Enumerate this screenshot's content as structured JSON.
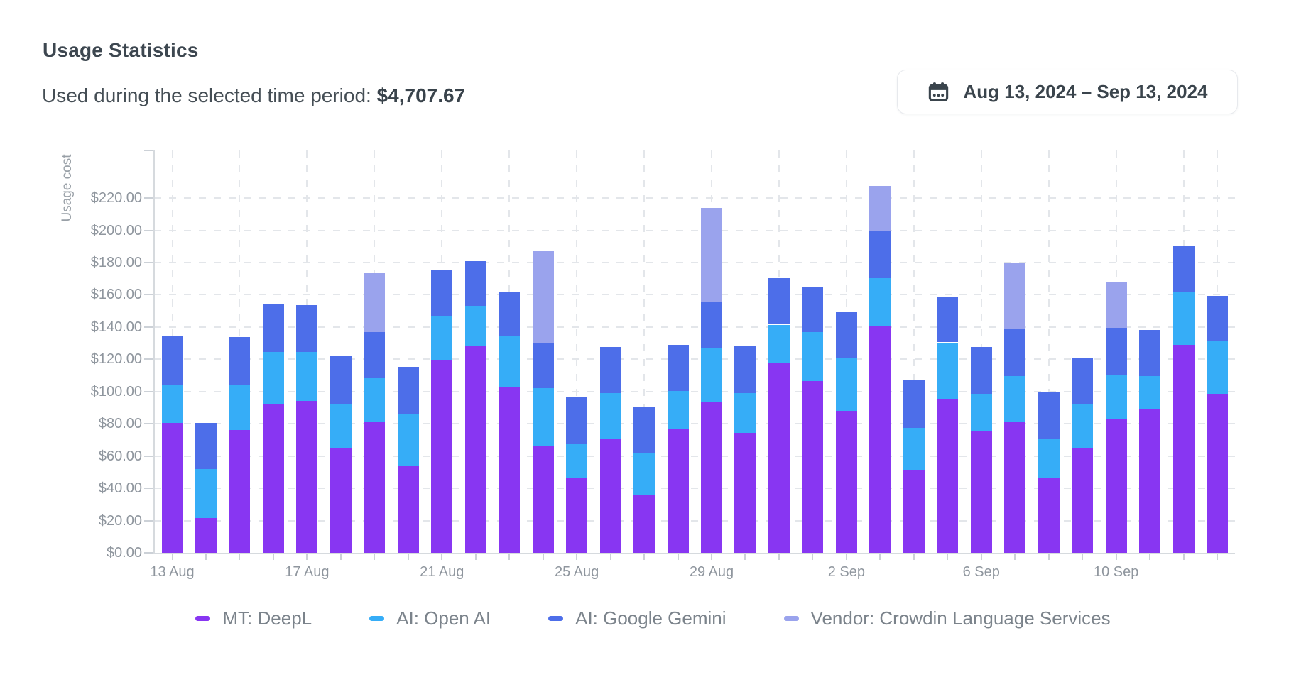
{
  "page": {
    "title": "Usage Statistics",
    "subtitle": {
      "label": "Used during the selected time period:",
      "value": "$4,707.67"
    },
    "date_picker": {
      "label": "Aug 13, 2024 – Sep 13, 2024",
      "icon": "calendar-icon"
    }
  },
  "colors": {
    "deepl": "#8836f2",
    "openai": "#36adf7",
    "gemini": "#4d6ee9",
    "vendor": "#9aa3ed",
    "axis_text": "#8f969e",
    "legend_text": "#7b838b",
    "grid_line": "#e3e6ea",
    "axis_line": "#d6dade",
    "title_text": "#3d4750"
  },
  "chart_data": {
    "type": "bar",
    "stacked": true,
    "title": "Usage Statistics",
    "xlabel": "",
    "ylabel": "Usage cost",
    "ylim": [
      0,
      250
    ],
    "ytick_step": 20,
    "ytick_format": "$%.2f",
    "grid": "dashed",
    "legend_position": "bottom",
    "categories": [
      "13 Aug",
      "14 Aug",
      "15 Aug",
      "16 Aug",
      "17 Aug",
      "18 Aug",
      "19 Aug",
      "20 Aug",
      "21 Aug",
      "22 Aug",
      "23 Aug",
      "24 Aug",
      "25 Aug",
      "26 Aug",
      "27 Aug",
      "28 Aug",
      "29 Aug",
      "30 Aug",
      "31 Aug",
      "1 Sep",
      "2 Sep",
      "3 Sep",
      "4 Sep",
      "5 Sep",
      "6 Sep",
      "7 Sep",
      "8 Sep",
      "9 Sep",
      "10 Sep",
      "11 Sep",
      "12 Sep",
      "13 Sep"
    ],
    "xtick_labels_shown": [
      "13 Aug",
      "17 Aug",
      "21 Aug",
      "25 Aug",
      "29 Aug",
      "2 Sep",
      "6 Sep",
      "10 Sep"
    ],
    "series": [
      {
        "name": "MT: DeepL",
        "color": "#8836f2",
        "values": [
          80.5,
          21.5,
          76,
          92,
          94,
          65,
          81,
          53.5,
          119.5,
          128,
          103,
          66.5,
          46.5,
          71,
          36,
          76.5,
          93.5,
          74.5,
          117.5,
          106.5,
          88,
          140.5,
          51,
          95.5,
          75.5,
          81.5,
          46.5,
          65,
          83,
          89.5,
          129,
          98.5
        ]
      },
      {
        "name": "AI: Open AI",
        "color": "#36adf7",
        "values": [
          24,
          30.5,
          28,
          32.5,
          30.5,
          27.5,
          27.5,
          32.5,
          27.5,
          25,
          31.5,
          35.5,
          21,
          28,
          25.5,
          24,
          33.5,
          24.5,
          24,
          30.5,
          33,
          30,
          26.5,
          35,
          23,
          28,
          24.5,
          27.5,
          27.5,
          20,
          33,
          33
        ]
      },
      {
        "name": "AI: Google Gemini",
        "color": "#4d6ee9",
        "values": [
          30,
          28.5,
          30,
          30,
          29,
          29.5,
          28.5,
          29.5,
          28.5,
          28,
          27.5,
          28.5,
          29,
          28.5,
          29,
          28.5,
          28.5,
          29.5,
          29,
          28,
          28.5,
          29,
          29.5,
          28,
          29,
          29,
          29,
          28.5,
          29,
          28.5,
          28.5,
          28
        ]
      },
      {
        "name": "Vendor: Crowdin Language Services",
        "color": "#9aa3ed",
        "values": [
          0,
          0,
          0,
          0,
          0,
          0,
          36.5,
          0,
          0,
          0,
          0,
          57,
          0,
          0,
          0,
          0,
          58.5,
          0,
          0,
          0,
          0,
          28,
          0,
          0,
          0,
          41,
          0,
          0,
          28.5,
          0,
          0,
          0
        ]
      }
    ]
  }
}
